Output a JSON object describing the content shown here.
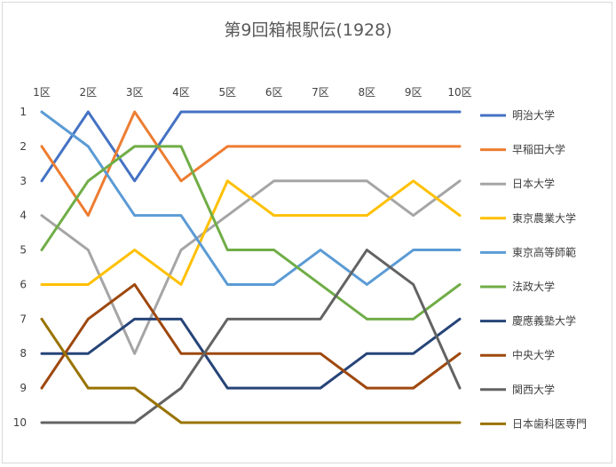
{
  "chart_data": {
    "type": "line",
    "title": "第9回箱根駅伝(1928)",
    "xlabel": "",
    "ylabel": "",
    "categories": [
      "1区",
      "2区",
      "3区",
      "4区",
      "5区",
      "6区",
      "7区",
      "8区",
      "9区",
      "10区"
    ],
    "y_ticks": [
      "1",
      "2",
      "3",
      "4",
      "5",
      "6",
      "7",
      "8",
      "9",
      "10"
    ],
    "ylim": [
      1,
      10
    ],
    "y_reversed": true,
    "grid": false,
    "legend": "right",
    "series": [
      {
        "name": "明治大学",
        "color": "#4472c4",
        "values": [
          3,
          1,
          3,
          1,
          1,
          1,
          1,
          1,
          1,
          1
        ]
      },
      {
        "name": "早稲田大学",
        "color": "#ed7d31",
        "values": [
          2,
          4,
          1,
          3,
          2,
          2,
          2,
          2,
          2,
          2
        ]
      },
      {
        "name": "日本大学",
        "color": "#a5a5a5",
        "values": [
          4,
          5,
          8,
          5,
          4,
          3,
          3,
          3,
          4,
          3
        ]
      },
      {
        "name": "東京農業大学",
        "color": "#ffc000",
        "values": [
          6,
          6,
          5,
          6,
          3,
          4,
          4,
          4,
          3,
          4
        ]
      },
      {
        "name": "東京高等師範",
        "color": "#5b9bd5",
        "values": [
          1,
          2,
          4,
          4,
          6,
          6,
          5,
          6,
          5,
          5
        ]
      },
      {
        "name": "法政大学",
        "color": "#70ad47",
        "values": [
          5,
          3,
          2,
          2,
          5,
          5,
          6,
          7,
          7,
          6
        ]
      },
      {
        "name": "慶應義塾大学",
        "color": "#264478",
        "values": [
          8,
          8,
          7,
          7,
          9,
          9,
          9,
          8,
          8,
          7
        ]
      },
      {
        "name": "中央大学",
        "color": "#9e480e",
        "values": [
          9,
          7,
          6,
          8,
          8,
          8,
          8,
          9,
          9,
          8
        ]
      },
      {
        "name": "関西大学",
        "color": "#636363",
        "values": [
          10,
          10,
          10,
          9,
          7,
          7,
          7,
          5,
          6,
          9
        ]
      },
      {
        "name": "日本歯科医専門",
        "color": "#997300",
        "values": [
          7,
          9,
          9,
          10,
          10,
          10,
          10,
          10,
          10,
          10
        ]
      }
    ]
  }
}
